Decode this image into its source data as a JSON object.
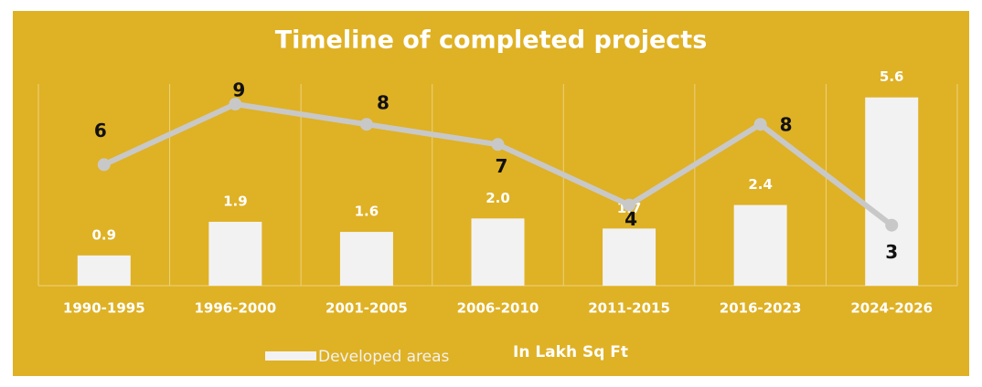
{
  "chart_data": {
    "type": "bar_line",
    "title": "Timeline of completed projects",
    "categories": [
      "1990-1995",
      "1996-2000",
      "2001-2005",
      "2006-2010",
      "2011-2015",
      "2016-2023",
      "2024-2026"
    ],
    "series": [
      {
        "name": "Developed areas",
        "type": "bar",
        "color": "#f2f2f2",
        "values": [
          0.9,
          1.9,
          1.6,
          2.0,
          1.7,
          2.4,
          5.6
        ],
        "value_labels": [
          "0.9",
          "1.9",
          "1.6",
          "2.0",
          "1.7",
          "2.4",
          "5.6"
        ]
      },
      {
        "type": "line",
        "axis": "y2",
        "color": "#c8c8c8",
        "values": [
          6,
          9,
          8,
          7,
          4,
          8,
          3
        ]
      }
    ],
    "annotation": "In Lakh Sq Ft",
    "ylim": [
      0,
      6
    ],
    "y2lim": [
      0,
      10
    ],
    "background": "#dfb125",
    "legend": "bottom"
  }
}
